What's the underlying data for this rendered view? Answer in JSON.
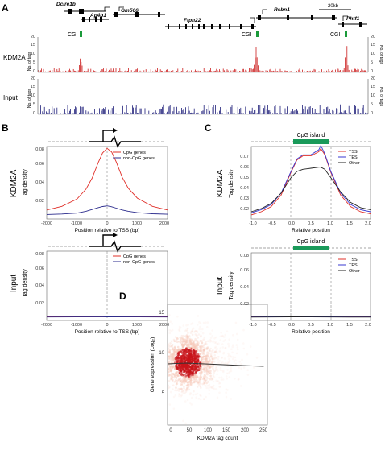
{
  "panels": {
    "A": "A",
    "B": "B",
    "C": "C",
    "D": "D"
  },
  "panelA": {
    "genes": [
      "Dclre1b",
      "Ap4b1",
      "Gm566",
      "Ftpn22",
      "Rsbn1",
      "Phtf1"
    ],
    "scale_bar": "20kb",
    "cgi_label": "CGI",
    "tracks": [
      {
        "name": "KDM2A",
        "color": "#cc1f1f",
        "yticks": [
          "0",
          "5",
          "10",
          "15",
          "20"
        ]
      },
      {
        "name": "Input",
        "color": "#1f1f7a",
        "yticks": [
          "0",
          "5",
          "10",
          "15",
          "20"
        ]
      }
    ],
    "right_axis_label": "No. of tags",
    "left_axis_label": "No. of tags"
  },
  "panelB": {
    "chart_data": [
      {
        "type": "line",
        "row_label": "KDM2A",
        "ylabel": "Tag density",
        "xlabel": "Position relative to TSS (bp)",
        "xlim": [
          -2000,
          2000
        ],
        "ylim": [
          0,
          0.08
        ],
        "xticks": [
          "-2000",
          "-1000",
          "0",
          "1000",
          "2000"
        ],
        "yticks": [
          "0.02",
          "0.04",
          "0.06",
          "0.08"
        ],
        "x": [
          -2000,
          -1500,
          -1000,
          -700,
          -500,
          -300,
          -150,
          0,
          150,
          300,
          500,
          700,
          1000,
          1500,
          2000
        ],
        "series": [
          {
            "name": "CpG genes",
            "color": "#e0302a",
            "values": [
              0.01,
              0.014,
              0.022,
              0.033,
              0.045,
              0.062,
              0.073,
              0.078,
              0.074,
              0.063,
              0.046,
              0.034,
              0.023,
              0.014,
              0.01
            ]
          },
          {
            "name": "non-CpG genes",
            "color": "#2b2b8c",
            "values": [
              0.005,
              0.0055,
              0.0065,
              0.0085,
              0.0105,
              0.0125,
              0.0138,
              0.0145,
              0.0135,
              0.012,
              0.01,
              0.0085,
              0.007,
              0.0058,
              0.0052
            ]
          }
        ]
      },
      {
        "type": "line",
        "row_label": "Input",
        "ylabel": "Tag density",
        "xlabel": "Position relative to TSS (bp)",
        "xlim": [
          -2000,
          2000
        ],
        "ylim": [
          0,
          0.08
        ],
        "xticks": [
          "-2000",
          "-1000",
          "0",
          "1000",
          "2000"
        ],
        "yticks": [
          "0.02",
          "0.04",
          "0.06",
          "0.08"
        ],
        "x": [
          -2000,
          -1000,
          0,
          1000,
          2000
        ],
        "series": [
          {
            "name": "CpG genes",
            "color": "#e0302a",
            "values": [
              0.0045,
              0.0046,
              0.0047,
              0.0046,
              0.0045
            ]
          },
          {
            "name": "non-CpG genes",
            "color": "#2b2b8c",
            "values": [
              0.004,
              0.0041,
              0.0042,
              0.0041,
              0.004
            ]
          }
        ]
      }
    ]
  },
  "panelC": {
    "island_label": "CpG island",
    "chart_data": [
      {
        "type": "line",
        "row_label": "KDM2A",
        "ylabel": "Tag density",
        "xlabel": "Relative position",
        "xlim": [
          -1.0,
          2.0
        ],
        "ylim": [
          0.01,
          0.08
        ],
        "xticks": [
          "-1.0",
          "-0.5",
          "0.0",
          "0.5",
          "1.0",
          "1.5",
          "2.0"
        ],
        "yticks": [
          "0.02",
          "0.03",
          "0.04",
          "0.05",
          "0.06",
          "0.07"
        ],
        "x": [
          -1.0,
          -0.75,
          -0.5,
          -0.25,
          0.0,
          0.15,
          0.3,
          0.5,
          0.7,
          0.75,
          0.85,
          1.0,
          1.25,
          1.5,
          1.75,
          2.0
        ],
        "series": [
          {
            "name": "TSS",
            "color": "#e0302a",
            "values": [
              0.014,
              0.017,
              0.022,
              0.033,
              0.055,
              0.067,
              0.071,
              0.071,
              0.075,
              0.078,
              0.072,
              0.055,
              0.033,
              0.022,
              0.017,
              0.015
            ]
          },
          {
            "name": "TES",
            "color": "#3a3ad0",
            "values": [
              0.016,
              0.019,
              0.024,
              0.035,
              0.056,
              0.068,
              0.072,
              0.072,
              0.077,
              0.081,
              0.073,
              0.056,
              0.035,
              0.024,
              0.019,
              0.017
            ]
          },
          {
            "name": "Other",
            "color": "#222222",
            "values": [
              0.017,
              0.02,
              0.025,
              0.035,
              0.05,
              0.056,
              0.058,
              0.059,
              0.06,
              0.06,
              0.058,
              0.05,
              0.036,
              0.026,
              0.021,
              0.019
            ]
          }
        ]
      },
      {
        "type": "line",
        "row_label": "Input",
        "ylabel": "Tag density",
        "xlabel": "Relative position",
        "xlim": [
          -1.0,
          2.0
        ],
        "ylim": [
          0.0,
          0.08
        ],
        "xticks": [
          "-1.0",
          "-0.5",
          "0.0",
          "0.5",
          "1.0",
          "1.5",
          "2.0"
        ],
        "yticks": [
          "0.02",
          "0.04",
          "0.06",
          "0.08"
        ],
        "x": [
          -1.0,
          -0.5,
          0.0,
          0.5,
          1.0,
          1.5,
          2.0
        ],
        "series": [
          {
            "name": "TSS",
            "color": "#e0302a",
            "values": [
              0.0045,
              0.0046,
              0.0048,
              0.0047,
              0.0046,
              0.0045,
              0.0045
            ]
          },
          {
            "name": "TES",
            "color": "#3a3ad0",
            "values": [
              0.0042,
              0.0043,
              0.0045,
              0.0044,
              0.0043,
              0.0042,
              0.0042
            ]
          },
          {
            "name": "Other",
            "color": "#222222",
            "values": [
              0.004,
              0.0041,
              0.0043,
              0.0042,
              0.0041,
              0.004,
              0.004
            ]
          }
        ]
      }
    ]
  },
  "panelD": {
    "chart_data": {
      "type": "scatter",
      "xlabel": "KDM2A tag count",
      "ylabel": "Gene expression (Log₂)",
      "xlim": [
        0,
        270
      ],
      "ylim": [
        1,
        16
      ],
      "xticks": [
        "0",
        "50",
        "100",
        "150",
        "200",
        "250"
      ],
      "yticks": [
        "5",
        "10",
        "15"
      ],
      "density_center": [
        55,
        8.8
      ],
      "trend_line": {
        "x": [
          0,
          50,
          100,
          150,
          200,
          260
        ],
        "y": [
          8.6,
          8.7,
          8.6,
          8.5,
          8.4,
          8.3
        ]
      },
      "colors": {
        "low": "#f6c8b8",
        "high": "#c8141a",
        "trend": "#333333"
      }
    }
  }
}
